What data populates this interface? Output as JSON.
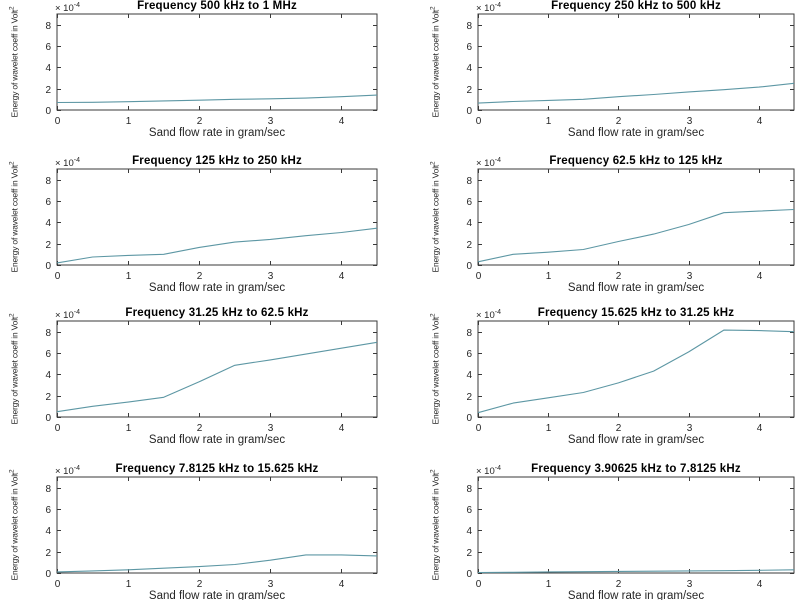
{
  "figure": {
    "background": "#ffffff",
    "line_color": "#5d97a4",
    "axis_color": "#3a3a3a",
    "text_color": "#262626"
  },
  "axes_shared": {
    "xlabel": "Sand flow rate in gram/sec",
    "ylabel": "Energy of wavelet coeff in Volt^2",
    "ylabel_base": "Energy of wavelet coeff in Volt",
    "ylabel_power": "2",
    "exponent_base": "× 10",
    "exponent_power": "-4",
    "xticks": [
      0,
      1,
      2,
      3,
      4
    ],
    "yticks": [
      0,
      2,
      4,
      6,
      8
    ],
    "xlim": [
      0,
      4.5
    ],
    "ylim": [
      0,
      9
    ],
    "y_unit_scale": "1e-4",
    "grid": false,
    "legend": "none"
  },
  "chart_data": [
    {
      "type": "line",
      "title": "Frequency 500 kHz to 1 MHz",
      "xlabel": "Sand flow rate in gram/sec",
      "ylabel": "Energy of wavelet coeff in Volt^2",
      "y_scale": "1e-4",
      "xlim": [
        0,
        4.5
      ],
      "ylim": [
        0,
        9
      ],
      "x": [
        0,
        0.5,
        1,
        1.5,
        2,
        2.5,
        3,
        3.5,
        4,
        4.5
      ],
      "y": [
        0.7,
        0.72,
        0.78,
        0.85,
        0.92,
        1.0,
        1.05,
        1.12,
        1.25,
        1.4
      ]
    },
    {
      "type": "line",
      "title": "Frequency 250 kHz to 500 kHz",
      "xlabel": "Sand flow rate in gram/sec",
      "ylabel": "Energy of wavelet coeff in Volt^2",
      "y_scale": "1e-4",
      "xlim": [
        0,
        4.5
      ],
      "ylim": [
        0,
        9
      ],
      "x": [
        0,
        0.5,
        1,
        1.5,
        2,
        2.5,
        3,
        3.5,
        4,
        4.5
      ],
      "y": [
        0.65,
        0.8,
        0.9,
        1.0,
        1.25,
        1.45,
        1.7,
        1.9,
        2.15,
        2.5
      ]
    },
    {
      "type": "line",
      "title": "Frequency 125 kHz to 250 kHz",
      "xlabel": "Sand flow rate in gram/sec",
      "ylabel": "Energy of wavelet coeff in Volt^2",
      "y_scale": "1e-4",
      "xlim": [
        0,
        4.5
      ],
      "ylim": [
        0,
        9
      ],
      "x": [
        0,
        0.5,
        1,
        1.5,
        2,
        2.5,
        3,
        3.5,
        4,
        4.5
      ],
      "y": [
        0.2,
        0.75,
        0.9,
        1.0,
        1.65,
        2.15,
        2.4,
        2.75,
        3.05,
        3.45
      ]
    },
    {
      "type": "line",
      "title": "Frequency 62.5 kHz to 125 kHz",
      "xlabel": "Sand flow rate in gram/sec",
      "ylabel": "Energy of wavelet coeff in Volt^2",
      "y_scale": "1e-4",
      "xlim": [
        0,
        4.5
      ],
      "ylim": [
        0,
        9
      ],
      "x": [
        0,
        0.5,
        1,
        1.5,
        2,
        2.5,
        3,
        3.5,
        4,
        4.5
      ],
      "y": [
        0.3,
        1.0,
        1.2,
        1.45,
        2.2,
        2.9,
        3.8,
        4.9,
        5.05,
        5.2
      ]
    },
    {
      "type": "line",
      "title": "Frequency 31.25 kHz to 62.5 kHz",
      "xlabel": "Sand flow rate in gram/sec",
      "ylabel": "Energy of wavelet coeff in Volt^2",
      "y_scale": "1e-4",
      "xlim": [
        0,
        4.5
      ],
      "ylim": [
        0,
        9
      ],
      "x": [
        0,
        0.5,
        1,
        1.5,
        2,
        2.5,
        3,
        3.5,
        4,
        4.5
      ],
      "y": [
        0.5,
        1.0,
        1.4,
        1.85,
        3.3,
        4.85,
        5.35,
        5.9,
        6.45,
        7.0
      ]
    },
    {
      "type": "line",
      "title": "Frequency 15.625 kHz to 31.25 kHz",
      "xlabel": "Sand flow rate in gram/sec",
      "ylabel": "Energy of wavelet coeff in Volt^2",
      "y_scale": "1e-4",
      "xlim": [
        0,
        4.5
      ],
      "ylim": [
        0,
        9
      ],
      "x": [
        0,
        0.5,
        1,
        1.5,
        2,
        2.5,
        3,
        3.5,
        4,
        4.5
      ],
      "y": [
        0.4,
        1.3,
        1.8,
        2.3,
        3.2,
        4.3,
        6.1,
        8.15,
        8.1,
        8.0
      ]
    },
    {
      "type": "line",
      "title": "Frequency 7.8125 kHz to 15.625 kHz",
      "xlabel": "Sand flow rate in gram/sec",
      "ylabel": "Energy of wavelet coeff in Volt^2",
      "y_scale": "1e-4",
      "xlim": [
        0,
        4.5
      ],
      "ylim": [
        0,
        9
      ],
      "x": [
        0,
        0.5,
        1,
        1.5,
        2,
        2.5,
        3,
        3.5,
        4,
        4.5
      ],
      "y": [
        0.1,
        0.2,
        0.3,
        0.45,
        0.6,
        0.8,
        1.2,
        1.7,
        1.7,
        1.6
      ]
    },
    {
      "type": "line",
      "title": "Frequency 3.90625 kHz to 7.8125 kHz",
      "xlabel": "Sand flow rate in gram/sec",
      "ylabel": "Energy of wavelet coeff in Volt^2",
      "y_scale": "1e-4",
      "xlim": [
        0,
        4.5
      ],
      "ylim": [
        0,
        9
      ],
      "x": [
        0,
        0.5,
        1,
        1.5,
        2,
        2.5,
        3,
        3.5,
        4,
        4.5
      ],
      "y": [
        0.05,
        0.07,
        0.1,
        0.12,
        0.15,
        0.17,
        0.2,
        0.22,
        0.25,
        0.3
      ]
    }
  ]
}
